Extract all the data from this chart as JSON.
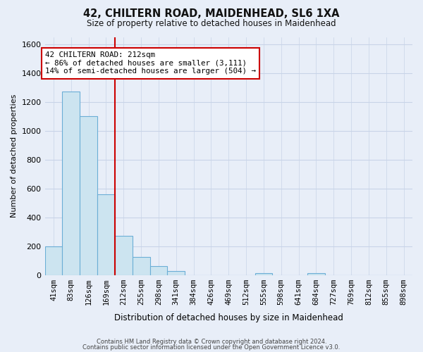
{
  "title": "42, CHILTERN ROAD, MAIDENHEAD, SL6 1XA",
  "subtitle": "Size of property relative to detached houses in Maidenhead",
  "xlabel": "Distribution of detached houses by size in Maidenhead",
  "ylabel": "Number of detached properties",
  "footer_line1": "Contains HM Land Registry data © Crown copyright and database right 2024.",
  "footer_line2": "Contains public sector information licensed under the Open Government Licence v3.0.",
  "bar_labels": [
    "41sqm",
    "83sqm",
    "126sqm",
    "169sqm",
    "212sqm",
    "255sqm",
    "298sqm",
    "341sqm",
    "384sqm",
    "426sqm",
    "469sqm",
    "512sqm",
    "555sqm",
    "598sqm",
    "641sqm",
    "684sqm",
    "727sqm",
    "769sqm",
    "812sqm",
    "855sqm",
    "898sqm"
  ],
  "bar_values": [
    200,
    1270,
    1100,
    560,
    275,
    125,
    62,
    30,
    0,
    0,
    0,
    0,
    15,
    0,
    0,
    15,
    0,
    0,
    0,
    0,
    0
  ],
  "bar_color": "#cce4f0",
  "bar_edge_color": "#6baed6",
  "vline_x": 4,
  "vline_color": "#cc0000",
  "annotation_title": "42 CHILTERN ROAD: 212sqm",
  "annotation_line2": "← 86% of detached houses are smaller (3,111)",
  "annotation_line3": "14% of semi-detached houses are larger (504) →",
  "annotation_box_color": "#ffffff",
  "annotation_box_edge": "#cc0000",
  "ylim": [
    0,
    1650
  ],
  "yticks": [
    0,
    200,
    400,
    600,
    800,
    1000,
    1200,
    1400,
    1600
  ],
  "bg_color": "#e8eef8",
  "plot_bg_color": "#e8eef8",
  "grid_color": "#c8d4e8"
}
